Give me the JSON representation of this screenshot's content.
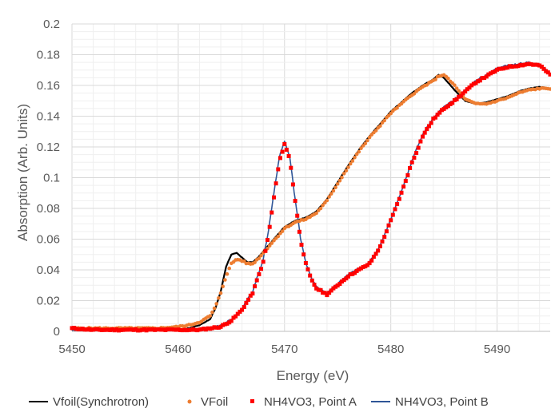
{
  "chart_data": {
    "type": "scatter",
    "title": "",
    "xlabel": "Energy (eV)",
    "ylabel": "Absorption (Arb. Units)",
    "xlim": [
      5450,
      5495
    ],
    "ylim": [
      0,
      0.2
    ],
    "x_ticks": [
      "5450",
      "5460",
      "5470",
      "5480",
      "5490"
    ],
    "y_ticks": [
      "0",
      "0.02",
      "0.04",
      "0.06",
      "0.08",
      "0.1",
      "0.12",
      "0.14",
      "0.16",
      "0.18",
      "0.2"
    ],
    "grid": "on",
    "legend_position": "bottom",
    "series": [
      {
        "name": "Vfoil(Synchrotron)",
        "style": "line",
        "color": "#000000",
        "x": [
          5450,
          5452,
          5455,
          5458,
          5460,
          5461,
          5462,
          5463,
          5463.5,
          5464,
          5464.5,
          5465,
          5465.5,
          5466,
          5466.5,
          5467,
          5467.5,
          5468,
          5468.5,
          5469,
          5469.5,
          5470,
          5471,
          5472,
          5473,
          5474,
          5475,
          5476,
          5477,
          5478,
          5479,
          5480,
          5481,
          5482,
          5483,
          5484,
          5484.5,
          5485,
          5486,
          5487,
          5488,
          5489,
          5490,
          5491,
          5492,
          5493,
          5494,
          5495
        ],
        "y": [
          0.001,
          0.001,
          0.001,
          0.001,
          0.001,
          0.002,
          0.004,
          0.008,
          0.015,
          0.026,
          0.042,
          0.05,
          0.051,
          0.048,
          0.045,
          0.045,
          0.048,
          0.052,
          0.056,
          0.06,
          0.064,
          0.068,
          0.072,
          0.074,
          0.078,
          0.086,
          0.097,
          0.108,
          0.118,
          0.127,
          0.135,
          0.143,
          0.149,
          0.155,
          0.16,
          0.164,
          0.167,
          0.165,
          0.157,
          0.15,
          0.148,
          0.149,
          0.151,
          0.153,
          0.156,
          0.158,
          0.159,
          0.158
        ]
      },
      {
        "name": "VFoil",
        "style": "dots",
        "color": "#ED7D31",
        "x": [
          5450,
          5452,
          5455,
          5458,
          5460,
          5461,
          5462,
          5463,
          5463.5,
          5464,
          5464.5,
          5465,
          5465.5,
          5466,
          5466.5,
          5467,
          5467.5,
          5468,
          5468.5,
          5469,
          5469.5,
          5470,
          5471,
          5472,
          5473,
          5474,
          5475,
          5476,
          5477,
          5478,
          5479,
          5480,
          5481,
          5482,
          5483,
          5484,
          5484.5,
          5485,
          5486,
          5487,
          5488,
          5489,
          5490,
          5491,
          5492,
          5493,
          5494,
          5495
        ],
        "y": [
          0.002,
          0.002,
          0.002,
          0.002,
          0.003,
          0.004,
          0.006,
          0.01,
          0.016,
          0.025,
          0.036,
          0.044,
          0.047,
          0.046,
          0.044,
          0.044,
          0.047,
          0.051,
          0.055,
          0.059,
          0.063,
          0.067,
          0.071,
          0.073,
          0.077,
          0.085,
          0.096,
          0.107,
          0.117,
          0.126,
          0.134,
          0.142,
          0.148,
          0.154,
          0.159,
          0.163,
          0.166,
          0.167,
          0.16,
          0.151,
          0.148,
          0.148,
          0.15,
          0.152,
          0.155,
          0.157,
          0.158,
          0.158
        ]
      },
      {
        "name": "NH4VO3, Point A",
        "style": "squares",
        "color": "#FF0000",
        "x": [
          5450,
          5452,
          5455,
          5458,
          5460,
          5462,
          5463,
          5464,
          5465,
          5466,
          5467,
          5468,
          5468.5,
          5469,
          5469.5,
          5470,
          5470.5,
          5471,
          5471.5,
          5472,
          5472.5,
          5473,
          5474,
          5475,
          5476,
          5477,
          5478,
          5479,
          5480,
          5481,
          5481.5,
          5482,
          5482.5,
          5483,
          5484,
          5485,
          5486,
          5487,
          5488,
          5489,
          5490,
          5491,
          5492,
          5493,
          5494,
          5495
        ],
        "y": [
          0.002,
          0.001,
          0.001,
          0.001,
          0.001,
          0.001,
          0.002,
          0.003,
          0.007,
          0.014,
          0.025,
          0.045,
          0.063,
          0.087,
          0.11,
          0.122,
          0.112,
          0.085,
          0.06,
          0.044,
          0.034,
          0.028,
          0.024,
          0.03,
          0.036,
          0.04,
          0.044,
          0.055,
          0.072,
          0.09,
          0.1,
          0.11,
          0.118,
          0.127,
          0.138,
          0.145,
          0.15,
          0.156,
          0.162,
          0.166,
          0.17,
          0.172,
          0.173,
          0.174,
          0.173,
          0.167
        ]
      },
      {
        "name": "NH4VO3, Point B",
        "style": "line",
        "color": "#2F5597",
        "x": [
          5450,
          5452,
          5455,
          5458,
          5460,
          5462,
          5463,
          5464,
          5465,
          5466,
          5467,
          5468,
          5468.5,
          5469,
          5469.5,
          5470,
          5470.5,
          5471,
          5471.5,
          5472,
          5472.5,
          5473,
          5474,
          5475,
          5476,
          5477,
          5478,
          5479,
          5480,
          5481,
          5481.5,
          5482,
          5482.5,
          5483,
          5484,
          5485,
          5486,
          5487,
          5488,
          5489,
          5490,
          5491,
          5492,
          5493,
          5494,
          5495
        ],
        "y": [
          0.001,
          0.001,
          0.001,
          0.001,
          0.001,
          0.001,
          0.002,
          0.004,
          0.008,
          0.015,
          0.026,
          0.047,
          0.066,
          0.09,
          0.113,
          0.124,
          0.113,
          0.086,
          0.061,
          0.045,
          0.035,
          0.029,
          0.025,
          0.031,
          0.037,
          0.041,
          0.045,
          0.056,
          0.073,
          0.091,
          0.101,
          0.111,
          0.12,
          0.128,
          0.139,
          0.146,
          0.151,
          0.157,
          0.163,
          0.167,
          0.171,
          0.173,
          0.174,
          0.175,
          0.173,
          0.168
        ]
      }
    ]
  }
}
